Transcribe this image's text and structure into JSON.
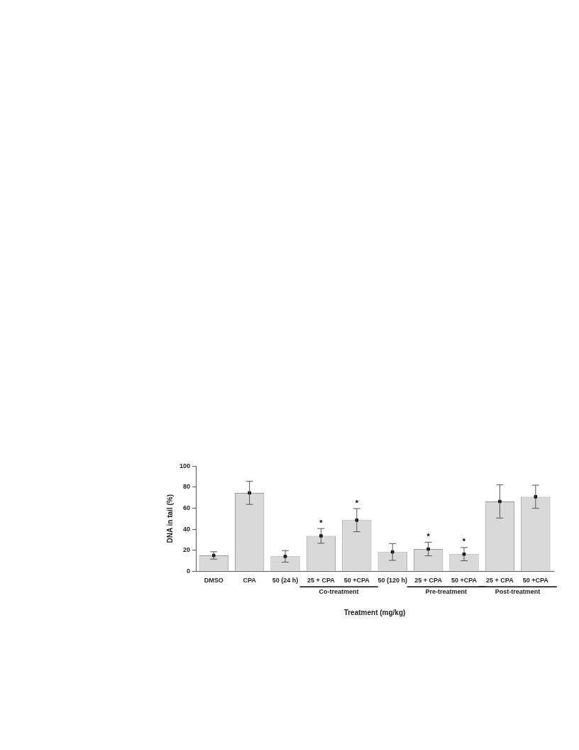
{
  "chart_data": {
    "type": "bar",
    "xlabel": "Treatment (mg/kg)",
    "ylabel": "DNA in tail (%)",
    "categories": [
      "DMSO",
      "CPA",
      "50 (24 h)",
      "25 + CPA",
      "50 +CPA",
      "50 (120 h)",
      "25 + CPA",
      "50 +CPA",
      "25 + CPA",
      "50 +CPA"
    ],
    "series": [
      {
        "color": "#d9d9d9",
        "values": [
          15,
          74.6,
          14.1,
          33.6,
          48.6,
          18.3,
          21.1,
          16.2,
          66.4,
          70.9
        ],
        "errors": [
          3.5,
          11,
          5.5,
          7,
          11,
          8,
          6.5,
          6.3,
          15.8,
          11
        ],
        "value_labels": [
          null,
          null,
          null,
          "*",
          "*",
          null,
          "*",
          "*",
          null,
          null
        ]
      },
      {
        "type": "scatter",
        "color": "#000000",
        "marker": "square",
        "values": [
          15,
          74.6,
          14.1,
          33.6,
          48.6,
          18.3,
          21.1,
          16.2,
          66.4,
          70.9
        ]
      }
    ],
    "ylim": [
      0,
      100
    ],
    "yticks": [
      0,
      20,
      40,
      60,
      80,
      100
    ],
    "grid": false,
    "legend": false,
    "annotations": [
      "Co-treatment",
      "Pre-treatment",
      "Post-treatment"
    ]
  }
}
